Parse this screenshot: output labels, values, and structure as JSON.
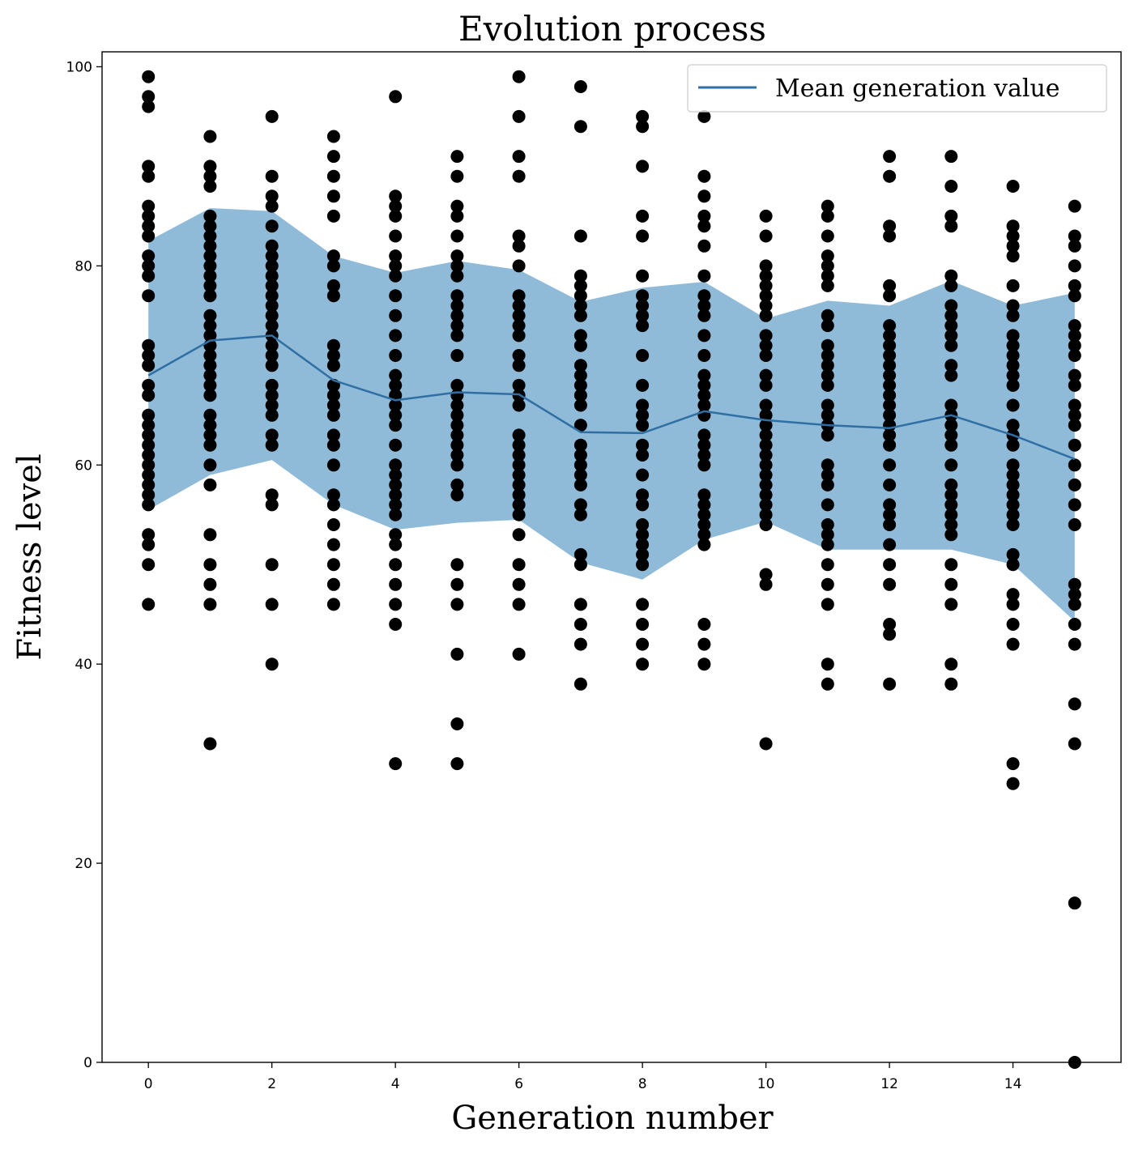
{
  "chart_data": {
    "type": "scatter",
    "title": "Evolution process",
    "xlabel": "Generation number",
    "ylabel": "Fitness level",
    "xlim": [
      -0.75,
      15.75
    ],
    "ylim": [
      0,
      101.5
    ],
    "xticks": [
      0,
      2,
      4,
      6,
      8,
      10,
      12,
      14
    ],
    "yticks": [
      0,
      20,
      40,
      60,
      80,
      100
    ],
    "x_tick_labels": [
      "0",
      "2",
      "4",
      "6",
      "8",
      "10",
      "12",
      "14"
    ],
    "y_tick_labels": [
      "0",
      "20",
      "40",
      "60",
      "80",
      "100"
    ],
    "grid": false,
    "legend": {
      "position": "top-right",
      "entries": [
        "Mean generation value"
      ]
    },
    "colors": {
      "points": "#000000",
      "mean_line": "#2f6fa3",
      "band": "#1f77b4",
      "band_opacity": 0.5
    },
    "series": [
      {
        "name": "Mean generation value",
        "kind": "line",
        "x": [
          0,
          1,
          2,
          3,
          4,
          5,
          6,
          7,
          8,
          9,
          10,
          11,
          12,
          13,
          14,
          15
        ],
        "values": [
          69,
          72.5,
          73,
          68.5,
          66.5,
          67.3,
          67.1,
          63.3,
          63.2,
          65.4,
          64.5,
          64,
          63.7,
          65,
          63,
          60.6
        ],
        "band_lower": [
          55.5,
          59,
          60.5,
          56,
          53.5,
          54.2,
          54.5,
          50.2,
          48.5,
          52.5,
          54.3,
          51.5,
          51.5,
          51.5,
          50,
          44.3
        ],
        "band_upper": [
          82.5,
          85.8,
          85.5,
          81,
          79.3,
          80.5,
          79.6,
          76.4,
          77.8,
          78.4,
          74.7,
          76.5,
          76,
          78.5,
          76,
          77.3
        ]
      },
      {
        "name": "",
        "kind": "scatter",
        "points_by_generation": [
          [
            99,
            97,
            96,
            90,
            89,
            86,
            85,
            84,
            83,
            81,
            80,
            79,
            77,
            72,
            71,
            70,
            68,
            67,
            65,
            64,
            63,
            62,
            61,
            60,
            59,
            58,
            57,
            56,
            53,
            52,
            50,
            46
          ],
          [
            93,
            90,
            89,
            88,
            85,
            84,
            83,
            82,
            81,
            80,
            79,
            78,
            77,
            75,
            74,
            73,
            72,
            71,
            70,
            69,
            68,
            67,
            65,
            64,
            63,
            62,
            60,
            58,
            53,
            50,
            48,
            46,
            32
          ],
          [
            95,
            89,
            87,
            86,
            84,
            82,
            81,
            80,
            79,
            78,
            77,
            76,
            75,
            74,
            73,
            72,
            71,
            70,
            68,
            67,
            66,
            65,
            63,
            62,
            57,
            56,
            50,
            46,
            40
          ],
          [
            93,
            91,
            89,
            87,
            85,
            81,
            80,
            78,
            77,
            72,
            71,
            70,
            68,
            67,
            66,
            65,
            63,
            62,
            60,
            57,
            56,
            54,
            52,
            50,
            48,
            46
          ],
          [
            97,
            87,
            86,
            85,
            83,
            81,
            80,
            79,
            77,
            75,
            73,
            71,
            69,
            68,
            67,
            66,
            65,
            64,
            62,
            60,
            59,
            58,
            57,
            56,
            55,
            53,
            52,
            50,
            48,
            46,
            44,
            30
          ],
          [
            91,
            89,
            86,
            85,
            83,
            81,
            80,
            79,
            77,
            76,
            75,
            74,
            73,
            71,
            68,
            67,
            66,
            65,
            64,
            63,
            62,
            61,
            60,
            58,
            57,
            50,
            48,
            46,
            41,
            34,
            30
          ],
          [
            99,
            95,
            91,
            89,
            83,
            82,
            80,
            77,
            76,
            75,
            74,
            73,
            71,
            70,
            68,
            67,
            66,
            63,
            62,
            61,
            60,
            59,
            58,
            57,
            56,
            55,
            53,
            50,
            48,
            46,
            41
          ],
          [
            98,
            94,
            83,
            79,
            78,
            77,
            76,
            75,
            73,
            72,
            70,
            69,
            68,
            67,
            66,
            64,
            62,
            61,
            60,
            59,
            58,
            56,
            55,
            51,
            50,
            46,
            44,
            42,
            38
          ],
          [
            95,
            94,
            90,
            85,
            83,
            79,
            77,
            76,
            75,
            74,
            71,
            68,
            66,
            65,
            64,
            62,
            61,
            59,
            57,
            56,
            54,
            53,
            52,
            51,
            50,
            46,
            44,
            42,
            40
          ],
          [
            95,
            89,
            87,
            85,
            84,
            82,
            79,
            77,
            76,
            75,
            73,
            71,
            69,
            68,
            67,
            66,
            65,
            63,
            62,
            61,
            60,
            57,
            56,
            55,
            54,
            53,
            52,
            44,
            42,
            40
          ],
          [
            85,
            83,
            80,
            79,
            78,
            77,
            76,
            75,
            73,
            72,
            71,
            69,
            68,
            66,
            65,
            64,
            63,
            62,
            61,
            60,
            59,
            58,
            57,
            56,
            55,
            54,
            49,
            48,
            32
          ],
          [
            86,
            85,
            83,
            81,
            80,
            79,
            78,
            75,
            74,
            72,
            71,
            70,
            69,
            68,
            66,
            65,
            64,
            63,
            60,
            59,
            58,
            56,
            54,
            53,
            52,
            50,
            48,
            46,
            40,
            38
          ],
          [
            91,
            89,
            84,
            83,
            78,
            77,
            74,
            73,
            72,
            71,
            70,
            69,
            68,
            67,
            66,
            65,
            64,
            63,
            62,
            60,
            58,
            56,
            55,
            54,
            52,
            50,
            48,
            44,
            43,
            38
          ],
          [
            91,
            88,
            85,
            84,
            79,
            78,
            76,
            75,
            74,
            73,
            72,
            70,
            69,
            66,
            65,
            64,
            63,
            62,
            60,
            58,
            57,
            56,
            55,
            54,
            53,
            50,
            48,
            46,
            40,
            38
          ],
          [
            88,
            84,
            83,
            82,
            81,
            78,
            76,
            75,
            73,
            72,
            71,
            70,
            69,
            68,
            66,
            64,
            63,
            62,
            60,
            59,
            58,
            57,
            56,
            55,
            54,
            51,
            50,
            47,
            46,
            44,
            42,
            30,
            28
          ],
          [
            86,
            83,
            82,
            80,
            78,
            77,
            74,
            73,
            72,
            71,
            69,
            68,
            66,
            65,
            64,
            62,
            60,
            58,
            56,
            54,
            48,
            47,
            46,
            44,
            42,
            36,
            32,
            16,
            0
          ]
        ]
      }
    ]
  }
}
